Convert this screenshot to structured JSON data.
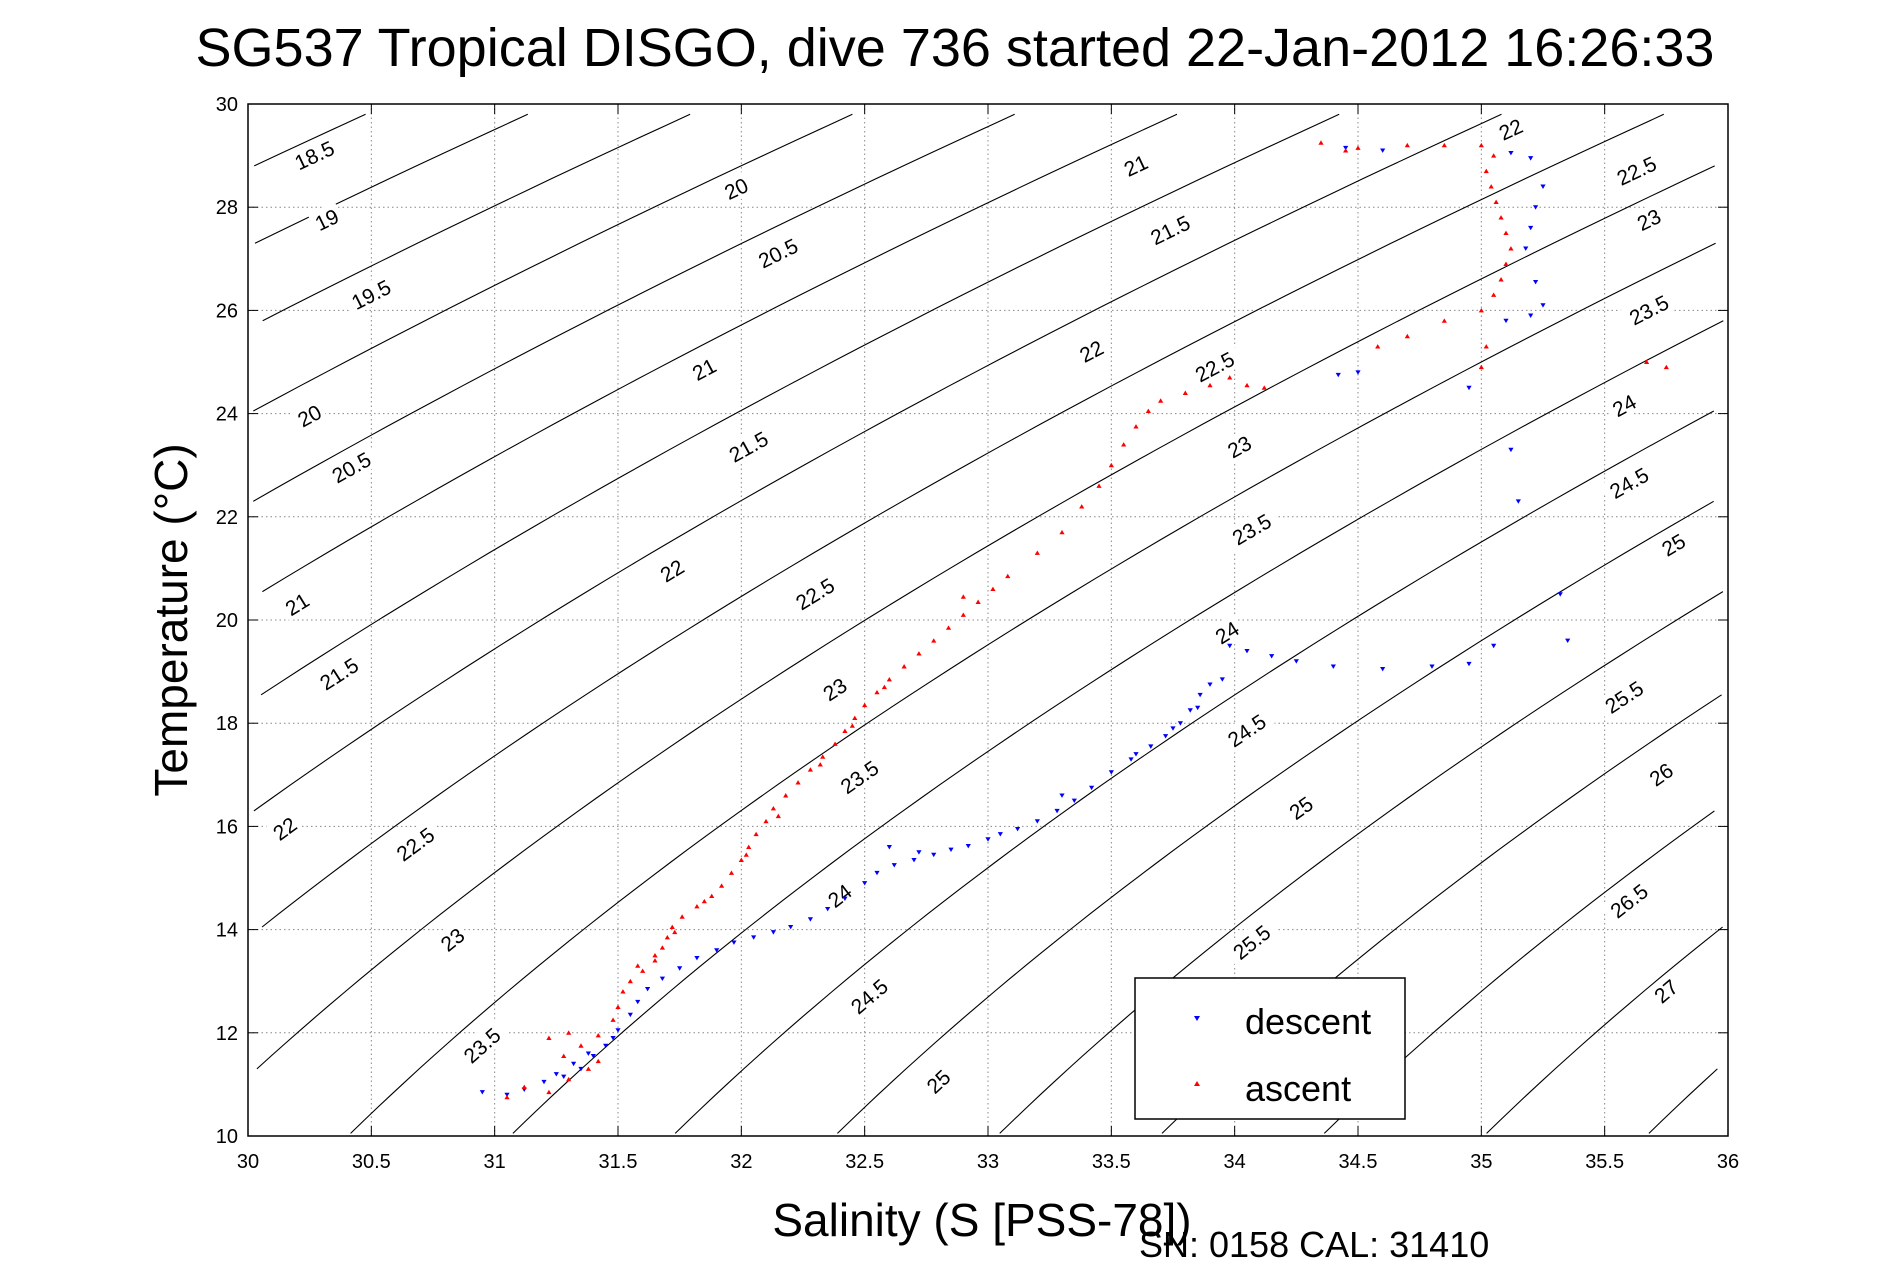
{
  "chart_data": {
    "type": "scatter",
    "title": "SG537 Tropical DISGO, dive 736 started 22-Jan-2012 16:26:33",
    "xlabel": "Salinity (S [PSS-78])",
    "ylabel": "Temperature (°C)",
    "footer": "SN: 0158  CAL: 31410",
    "xlim": [
      30,
      36
    ],
    "ylim": [
      10,
      30
    ],
    "x_ticks": [
      "30",
      "30.5",
      "31",
      "31.5",
      "32",
      "32.5",
      "33",
      "33.5",
      "34",
      "34.5",
      "35",
      "35.5",
      "36"
    ],
    "y_ticks": [
      "10",
      "12",
      "14",
      "16",
      "18",
      "20",
      "22",
      "24",
      "26",
      "28",
      "30"
    ],
    "grid": true,
    "legend_position": "bottom-right",
    "series": [
      {
        "name": "descent",
        "color": "#0000ff",
        "marker": "triangle-down",
        "points": [
          [
            30.95,
            10.85
          ],
          [
            31.05,
            10.8
          ],
          [
            31.12,
            10.9
          ],
          [
            31.2,
            11.05
          ],
          [
            31.28,
            11.15
          ],
          [
            31.35,
            11.3
          ],
          [
            31.4,
            11.55
          ],
          [
            31.45,
            11.75
          ],
          [
            31.5,
            12.05
          ],
          [
            31.55,
            12.35
          ],
          [
            31.58,
            12.6
          ],
          [
            31.62,
            12.85
          ],
          [
            31.68,
            13.05
          ],
          [
            31.75,
            13.25
          ],
          [
            31.82,
            13.45
          ],
          [
            31.9,
            13.6
          ],
          [
            31.97,
            13.75
          ],
          [
            32.05,
            13.85
          ],
          [
            32.13,
            13.95
          ],
          [
            32.2,
            14.05
          ],
          [
            32.28,
            14.2
          ],
          [
            32.35,
            14.4
          ],
          [
            32.42,
            14.6
          ],
          [
            32.5,
            14.9
          ],
          [
            32.55,
            15.1
          ],
          [
            32.62,
            15.25
          ],
          [
            32.7,
            15.35
          ],
          [
            32.78,
            15.45
          ],
          [
            32.85,
            15.55
          ],
          [
            32.92,
            15.62
          ],
          [
            33.0,
            15.75
          ],
          [
            33.05,
            15.85
          ],
          [
            33.12,
            15.95
          ],
          [
            33.2,
            16.1
          ],
          [
            33.28,
            16.3
          ],
          [
            33.35,
            16.5
          ],
          [
            33.42,
            16.75
          ],
          [
            33.5,
            17.05
          ],
          [
            33.58,
            17.3
          ],
          [
            33.66,
            17.55
          ],
          [
            33.72,
            17.75
          ],
          [
            33.78,
            18.0
          ],
          [
            33.82,
            18.25
          ],
          [
            33.86,
            18.55
          ],
          [
            33.9,
            18.75
          ],
          [
            33.95,
            18.85
          ],
          [
            33.98,
            19.5
          ],
          [
            34.05,
            19.4
          ],
          [
            34.15,
            19.3
          ],
          [
            34.25,
            19.2
          ],
          [
            34.4,
            19.1
          ],
          [
            34.6,
            19.05
          ],
          [
            34.8,
            19.1
          ],
          [
            34.95,
            19.15
          ],
          [
            35.05,
            19.5
          ],
          [
            35.35,
            19.6
          ],
          [
            35.32,
            20.5
          ],
          [
            35.15,
            22.3
          ],
          [
            35.12,
            23.3
          ],
          [
            34.95,
            24.5
          ],
          [
            34.5,
            24.8
          ],
          [
            34.42,
            24.75
          ],
          [
            35.1,
            25.8
          ],
          [
            35.2,
            25.9
          ],
          [
            35.25,
            26.1
          ],
          [
            35.22,
            26.55
          ],
          [
            35.18,
            27.2
          ],
          [
            35.2,
            27.6
          ],
          [
            35.22,
            28.0
          ],
          [
            35.25,
            28.4
          ],
          [
            35.2,
            28.95
          ],
          [
            35.12,
            29.05
          ],
          [
            34.6,
            29.1
          ],
          [
            34.45,
            29.15
          ],
          [
            31.25,
            11.2
          ],
          [
            31.32,
            11.4
          ],
          [
            31.38,
            11.6
          ],
          [
            31.48,
            11.9
          ],
          [
            32.6,
            15.6
          ],
          [
            32.72,
            15.5
          ],
          [
            33.3,
            16.6
          ],
          [
            33.6,
            17.4
          ],
          [
            33.75,
            17.9
          ],
          [
            33.85,
            18.3
          ]
        ]
      },
      {
        "name": "ascent",
        "color": "#ff0000",
        "marker": "triangle-up",
        "points": [
          [
            31.05,
            10.75
          ],
          [
            31.12,
            10.95
          ],
          [
            31.22,
            10.85
          ],
          [
            31.3,
            11.1
          ],
          [
            31.38,
            11.3
          ],
          [
            31.42,
            11.45
          ],
          [
            31.28,
            11.55
          ],
          [
            31.35,
            11.75
          ],
          [
            31.42,
            11.95
          ],
          [
            31.48,
            12.25
          ],
          [
            31.5,
            12.5
          ],
          [
            31.52,
            12.8
          ],
          [
            31.55,
            13.0
          ],
          [
            31.6,
            13.2
          ],
          [
            31.65,
            13.4
          ],
          [
            31.68,
            13.65
          ],
          [
            31.7,
            13.85
          ],
          [
            31.72,
            14.05
          ],
          [
            31.76,
            14.25
          ],
          [
            31.82,
            14.45
          ],
          [
            31.88,
            14.65
          ],
          [
            31.92,
            14.85
          ],
          [
            31.96,
            15.1
          ],
          [
            32.0,
            15.35
          ],
          [
            32.03,
            15.6
          ],
          [
            32.06,
            15.85
          ],
          [
            32.1,
            16.1
          ],
          [
            32.13,
            16.35
          ],
          [
            32.18,
            16.6
          ],
          [
            32.23,
            16.85
          ],
          [
            32.28,
            17.1
          ],
          [
            32.33,
            17.35
          ],
          [
            32.38,
            17.6
          ],
          [
            32.42,
            17.85
          ],
          [
            32.46,
            18.1
          ],
          [
            32.5,
            18.35
          ],
          [
            32.55,
            18.6
          ],
          [
            32.6,
            18.85
          ],
          [
            32.66,
            19.1
          ],
          [
            32.72,
            19.35
          ],
          [
            32.78,
            19.6
          ],
          [
            32.84,
            19.85
          ],
          [
            32.9,
            20.1
          ],
          [
            32.96,
            20.35
          ],
          [
            33.02,
            20.6
          ],
          [
            33.08,
            20.85
          ],
          [
            33.2,
            21.3
          ],
          [
            33.3,
            21.7
          ],
          [
            33.38,
            22.2
          ],
          [
            33.45,
            22.6
          ],
          [
            33.5,
            23.0
          ],
          [
            33.55,
            23.4
          ],
          [
            33.6,
            23.75
          ],
          [
            33.65,
            24.05
          ],
          [
            33.7,
            24.25
          ],
          [
            33.8,
            24.4
          ],
          [
            33.9,
            24.55
          ],
          [
            33.98,
            24.7
          ],
          [
            34.05,
            24.55
          ],
          [
            34.12,
            24.5
          ],
          [
            34.58,
            25.3
          ],
          [
            34.7,
            25.5
          ],
          [
            34.85,
            25.8
          ],
          [
            35.0,
            26.0
          ],
          [
            35.05,
            26.3
          ],
          [
            35.08,
            26.6
          ],
          [
            35.1,
            26.9
          ],
          [
            35.12,
            27.2
          ],
          [
            35.1,
            27.5
          ],
          [
            35.08,
            27.8
          ],
          [
            35.06,
            28.1
          ],
          [
            35.04,
            28.4
          ],
          [
            35.02,
            28.7
          ],
          [
            35.05,
            29.0
          ],
          [
            35.0,
            29.2
          ],
          [
            34.85,
            29.2
          ],
          [
            34.7,
            29.2
          ],
          [
            34.5,
            29.15
          ],
          [
            34.35,
            29.25
          ],
          [
            34.45,
            29.1
          ],
          [
            35.75,
            24.9
          ],
          [
            35.67,
            25.0
          ],
          [
            35.0,
            24.9
          ],
          [
            35.02,
            25.3
          ],
          [
            31.22,
            11.9
          ],
          [
            31.3,
            12.0
          ],
          [
            31.58,
            13.3
          ],
          [
            31.65,
            13.5
          ],
          [
            31.73,
            13.95
          ],
          [
            31.85,
            14.55
          ],
          [
            32.02,
            15.45
          ],
          [
            32.15,
            16.2
          ],
          [
            32.32,
            17.2
          ],
          [
            32.45,
            17.95
          ],
          [
            32.58,
            18.7
          ],
          [
            32.9,
            20.45
          ]
        ]
      }
    ],
    "contour_labels": [
      {
        "text": "18.5",
        "s": 30.27,
        "t": 29.0
      },
      {
        "text": "19",
        "s": 30.32,
        "t": 27.75
      },
      {
        "text": "19.5",
        "s": 30.5,
        "t": 26.3
      },
      {
        "text": "20",
        "s": 30.25,
        "t": 23.95
      },
      {
        "text": "20.5",
        "s": 30.42,
        "t": 22.95
      },
      {
        "text": "21",
        "s": 30.2,
        "t": 20.3
      },
      {
        "text": "21.5",
        "s": 30.37,
        "t": 18.95
      },
      {
        "text": "22",
        "s": 30.15,
        "t": 15.95
      },
      {
        "text": "22.5",
        "s": 30.68,
        "t": 15.65
      },
      {
        "text": "23",
        "s": 30.83,
        "t": 13.8
      },
      {
        "text": "23.5",
        "s": 30.95,
        "t": 11.75
      },
      {
        "text": "20",
        "s": 31.98,
        "t": 28.35
      },
      {
        "text": "20.5",
        "s": 32.15,
        "t": 27.1
      },
      {
        "text": "21",
        "s": 31.85,
        "t": 24.85
      },
      {
        "text": "21.5",
        "s": 32.03,
        "t": 23.35
      },
      {
        "text": "22",
        "s": 31.72,
        "t": 20.95
      },
      {
        "text": "22.5",
        "s": 32.3,
        "t": 20.5
      },
      {
        "text": "23",
        "s": 32.38,
        "t": 18.65
      },
      {
        "text": "23.5",
        "s": 32.48,
        "t": 16.95
      },
      {
        "text": "24",
        "s": 32.4,
        "t": 14.65
      },
      {
        "text": "24.5",
        "s": 32.52,
        "t": 12.7
      },
      {
        "text": "25",
        "s": 32.8,
        "t": 11.05
      },
      {
        "text": "21",
        "s": 33.6,
        "t": 28.8
      },
      {
        "text": "21.5",
        "s": 33.74,
        "t": 27.55
      },
      {
        "text": "22",
        "s": 33.42,
        "t": 25.2
      },
      {
        "text": "22.5",
        "s": 33.92,
        "t": 24.9
      },
      {
        "text": "23",
        "s": 34.02,
        "t": 23.35
      },
      {
        "text": "23.5",
        "s": 34.07,
        "t": 21.75
      },
      {
        "text": "24",
        "s": 33.97,
        "t": 19.75
      },
      {
        "text": "24.5",
        "s": 34.05,
        "t": 17.85
      },
      {
        "text": "25",
        "s": 34.27,
        "t": 16.35
      },
      {
        "text": "25.5",
        "s": 34.07,
        "t": 13.75
      },
      {
        "text": "22",
        "s": 35.12,
        "t": 29.5
      },
      {
        "text": "22.5",
        "s": 35.63,
        "t": 28.7
      },
      {
        "text": "23",
        "s": 35.68,
        "t": 27.75
      },
      {
        "text": "23.5",
        "s": 35.68,
        "t": 26.0
      },
      {
        "text": "24",
        "s": 35.58,
        "t": 24.15
      },
      {
        "text": "24.5",
        "s": 35.6,
        "t": 22.65
      },
      {
        "text": "25",
        "s": 35.78,
        "t": 21.45
      },
      {
        "text": "25.5",
        "s": 35.58,
        "t": 18.5
      },
      {
        "text": "26",
        "s": 35.73,
        "t": 17.0
      },
      {
        "text": "26.5",
        "s": 35.6,
        "t": 14.55
      },
      {
        "text": "27",
        "s": 35.75,
        "t": 12.8
      }
    ]
  }
}
